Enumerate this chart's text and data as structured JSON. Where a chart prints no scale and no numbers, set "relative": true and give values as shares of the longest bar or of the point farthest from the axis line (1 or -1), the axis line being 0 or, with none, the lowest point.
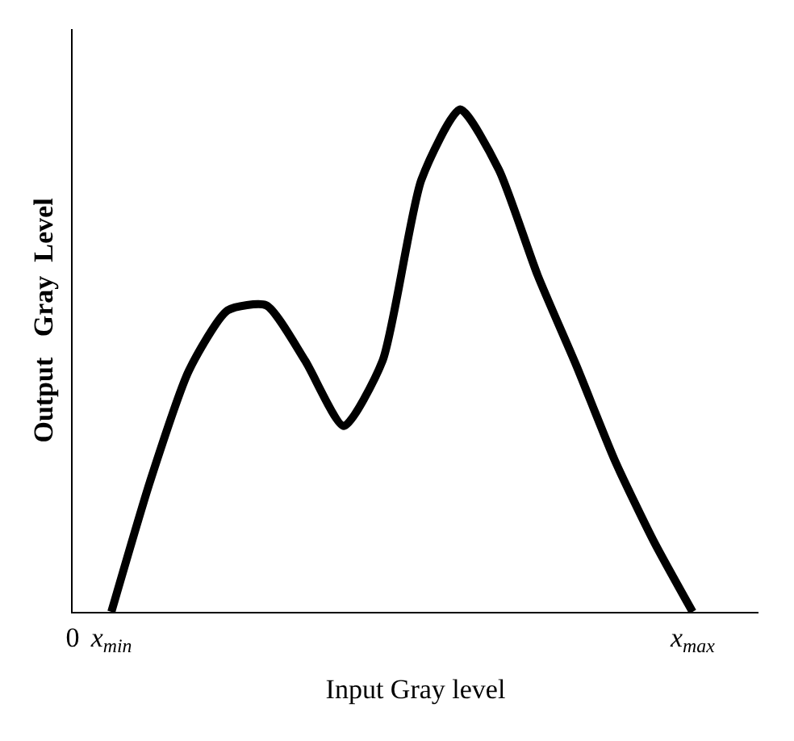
{
  "chart_data": {
    "type": "line",
    "relative": true,
    "xlabel": "Input Gray level",
    "ylabel": "Output   Gray  Level",
    "categories": [
      "0",
      "x$_{min}$",
      null,
      null,
      null,
      null,
      null,
      null,
      null,
      null,
      null,
      null,
      null,
      null,
      null,
      null,
      "x$_{max}$"
    ],
    "series": [
      {
        "color": "#000000",
        "values": [
          null,
          0,
          0.26,
          0.48,
          0.6,
          0.61,
          0.5,
          0.37,
          0.5,
          0.86,
          1,
          0.88,
          0.67,
          0.49,
          0.3,
          0.14,
          0
        ]
      }
    ],
    "tick_labels": "x",
    "marker": "none",
    "line_style": "solid"
  }
}
